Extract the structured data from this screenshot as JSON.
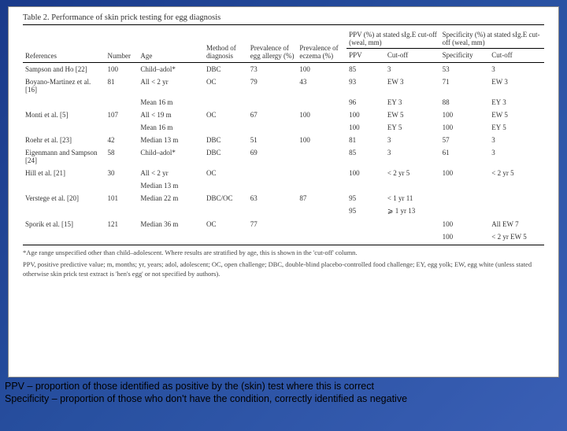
{
  "table": {
    "title": "Table 2. Performance of skin prick testing for egg diagnosis",
    "headers": {
      "references": "References",
      "number": "Number",
      "age": "Age",
      "method": "Method of diagnosis",
      "prev_allergy": "Prevalence of egg allergy (%)",
      "prev_eczema": "Prevalence of eczema (%)",
      "group_ppv": "PPV (%) at stated sIg.E cut-off (weal, mm)",
      "group_spec": "Specificity (%) at stated sIg.E cut-off (weal, mm)",
      "ppv": "PPV",
      "cutoff": "Cut-off",
      "spec": "Specificity"
    },
    "rows": [
      {
        "ref": "Sampson and Ho [22]",
        "n": "100",
        "age": "Child–adol*",
        "method": "DBC",
        "pa": "73",
        "pe": "100",
        "ppv": "85",
        "cut1": "3",
        "spec": "53",
        "cut2": "3"
      },
      {
        "ref": "Boyano-Martinez et al. [16]",
        "n": "81",
        "age": "All < 2 yr",
        "method": "OC",
        "pa": "79",
        "pe": "43",
        "ppv": "93",
        "cut1": "EW 3",
        "spec": "71",
        "cut2": "EW 3"
      },
      {
        "ref": "",
        "n": "",
        "age": "Mean 16 m",
        "method": "",
        "pa": "",
        "pe": "",
        "ppv": "96",
        "cut1": "EY 3",
        "spec": "88",
        "cut2": "EY 3"
      },
      {
        "ref": "Monti et al. [5]",
        "n": "107",
        "age": "All < 19 m",
        "method": "OC",
        "pa": "67",
        "pe": "100",
        "ppv": "100",
        "cut1": "EW 5",
        "spec": "100",
        "cut2": "EW 5"
      },
      {
        "ref": "",
        "n": "",
        "age": "Mean 16 m",
        "method": "",
        "pa": "",
        "pe": "",
        "ppv": "100",
        "cut1": "EY 5",
        "spec": "100",
        "cut2": "EY 5"
      },
      {
        "ref": "Roehr et al. [23]",
        "n": "42",
        "age": "Median 13 m",
        "method": "DBC",
        "pa": "51",
        "pe": "100",
        "ppv": "81",
        "cut1": "3",
        "spec": "57",
        "cut2": "3"
      },
      {
        "ref": "Eigenmann and Sampson [24]",
        "n": "58",
        "age": "Child–adol*",
        "method": "DBC",
        "pa": "69",
        "pe": "",
        "ppv": "85",
        "cut1": "3",
        "spec": "61",
        "cut2": "3"
      },
      {
        "ref": "Hill et al. [21]",
        "n": "30",
        "age": "All < 2 yr",
        "method": "OC",
        "pa": "",
        "pe": "",
        "ppv": "100",
        "cut1": "< 2 yr 5",
        "spec": "100",
        "cut2": "< 2 yr 5"
      },
      {
        "ref": "",
        "n": "",
        "age": "Median 13 m",
        "method": "",
        "pa": "",
        "pe": "",
        "ppv": "",
        "cut1": "",
        "spec": "",
        "cut2": ""
      },
      {
        "ref": "Verstege et al. [20]",
        "n": "101",
        "age": "Median 22 m",
        "method": "DBC/OC",
        "pa": "63",
        "pe": "87",
        "ppv": "95",
        "cut1": "< 1 yr 11",
        "spec": "",
        "cut2": ""
      },
      {
        "ref": "",
        "n": "",
        "age": "",
        "method": "",
        "pa": "",
        "pe": "",
        "ppv": "95",
        "cut1": "⩾ 1 yr 13",
        "spec": "",
        "cut2": ""
      },
      {
        "ref": "Sporik et al. [15]",
        "n": "121",
        "age": "Median 36 m",
        "method": "OC",
        "pa": "77",
        "pe": "",
        "ppv": "",
        "cut1": "",
        "spec": "100",
        "cut2": "All EW 7"
      },
      {
        "ref": "",
        "n": "",
        "age": "",
        "method": "",
        "pa": "",
        "pe": "",
        "ppv": "",
        "cut1": "",
        "spec": "100",
        "cut2": "< 2 yr EW 5"
      }
    ],
    "footnote1": "*Age range unspecified other than child–adolescent. Where results are stratified by age, this is shown in the 'cut-off' column.",
    "footnote2": "PPV, positive predictive value; m, months; yr, years; adol, adolescent; OC, open challenge; DBC, double-blind placebo-controlled food challenge; EY, egg yolk; EW, egg white (unless stated otherwise skin prick test extract is 'hen's egg' or not specified by authors)."
  },
  "caption": {
    "line1": "PPV – proportion of those identified as positive by the (skin) test  where this is correct",
    "line2": " Specificity – proportion of those who don't have the condition, correctly identified as negative"
  },
  "colwidths": [
    "15%",
    "6%",
    "12%",
    "8%",
    "9%",
    "9%",
    "7%",
    "9%",
    "8%",
    "10%"
  ]
}
